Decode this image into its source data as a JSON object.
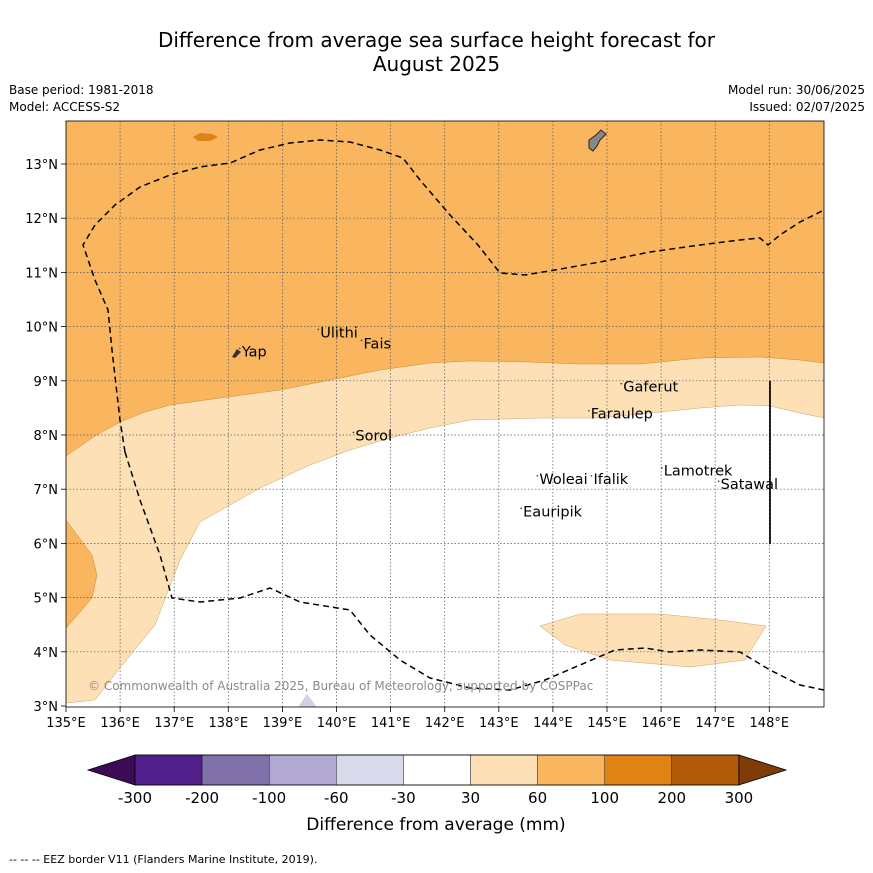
{
  "title_line1": "Difference from average sea surface height forecast for",
  "title_line2": "August 2025",
  "base_period": "Base period: 1981-2018",
  "model": "Model: ACCESS-S2",
  "model_run": "Model run: 30/06/2025",
  "issued": "Issued: 02/07/2025",
  "copyright": "© Commonwealth of Australia 2025, Bureau of Meteorology, supported by COSPPac",
  "footer": "-- -- -- EEZ border V11 (Flanders Marine Institute, 2019).",
  "lon_ticks": [
    "135°E",
    "136°E",
    "137°E",
    "138°E",
    "139°E",
    "140°E",
    "141°E",
    "142°E",
    "143°E",
    "144°E",
    "145°E",
    "146°E",
    "147°E",
    "148°E"
  ],
  "lat_ticks": [
    "3°N",
    "4°N",
    "5°N",
    "6°N",
    "7°N",
    "8°N",
    "9°N",
    "10°N",
    "11°N",
    "12°N",
    "13°N"
  ],
  "places": [
    {
      "name": "Yap",
      "lon": 138.25,
      "lat": 9.45
    },
    {
      "name": "Ulithi",
      "lon": 139.7,
      "lat": 9.8
    },
    {
      "name": "Fais",
      "lon": 140.5,
      "lat": 9.6
    },
    {
      "name": "Sorol",
      "lon": 140.35,
      "lat": 7.9
    },
    {
      "name": "Gaferut",
      "lon": 145.3,
      "lat": 8.8
    },
    {
      "name": "Faraulep",
      "lon": 144.7,
      "lat": 8.3
    },
    {
      "name": "Woleai",
      "lon": 143.75,
      "lat": 7.1
    },
    {
      "name": "Ifalik",
      "lon": 144.75,
      "lat": 7.1
    },
    {
      "name": "Lamotrek",
      "lon": 146.05,
      "lat": 7.25
    },
    {
      "name": "Satawal",
      "lon": 147.1,
      "lat": 7.0
    },
    {
      "name": "Eauripik",
      "lon": 143.45,
      "lat": 6.5
    }
  ],
  "colorbar": {
    "ticks": [
      "-300",
      "-200",
      "-100",
      "-60",
      "-30",
      "30",
      "60",
      "100",
      "200",
      "300"
    ],
    "colors": [
      "#3d0a55",
      "#52208a",
      "#8071ab",
      "#b1a9d1",
      "#d9d9ec",
      "#ffffff",
      "#fde0b6",
      "#f9b65f",
      "#e08214",
      "#b15a09",
      "#7f3b08"
    ],
    "label": "Difference from average (mm)"
  },
  "legend": {
    "eez_border": "EEZ border V11 (Flanders Marine Institute, 2019)."
  }
}
